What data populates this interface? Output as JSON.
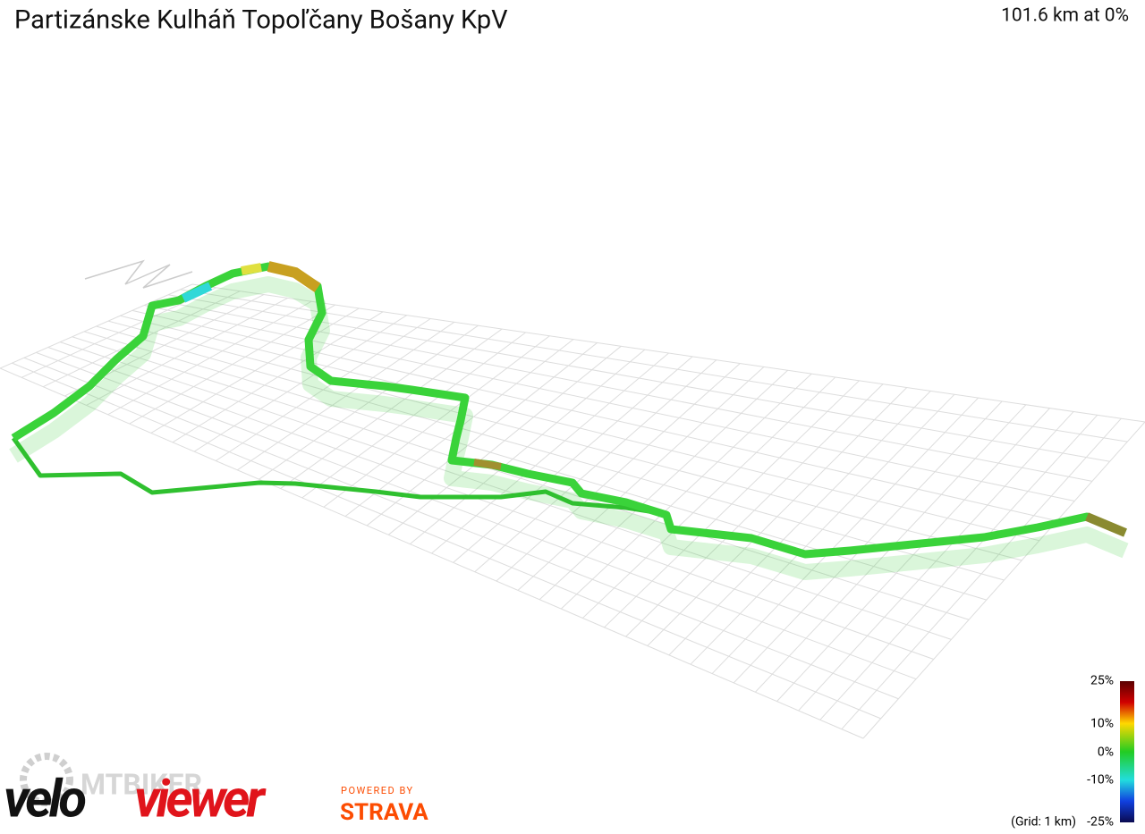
{
  "title": "Partizánske Kulháň Topoľčany Bošany KpV",
  "summary": "101.6 km at 0%",
  "legend": {
    "labels": [
      "25%",
      "10%",
      "0%",
      "-10%",
      "-25%"
    ],
    "grid_note": "(Grid: 1 km)"
  },
  "logos": {
    "watermark": "MTBIKER",
    "velo": "velo",
    "viewer": "viewer",
    "powered_by": "POWERED BY",
    "strava": "STRAVA"
  }
}
